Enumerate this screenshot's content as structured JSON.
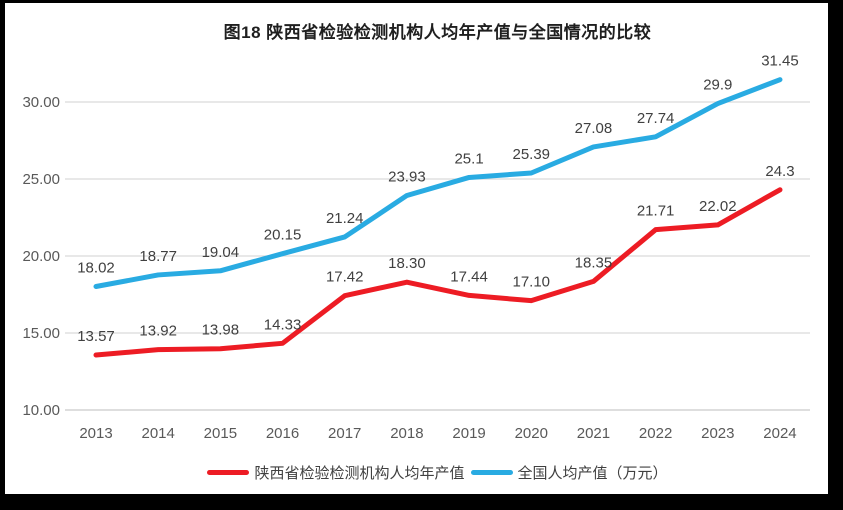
{
  "page": {
    "frame_color": "#000000",
    "background_color": "#ffffff"
  },
  "chart_data": {
    "type": "line",
    "title": "图18 陕西省检验检测机构人均年产值与全国情况的比较",
    "categories": [
      "2013",
      "2014",
      "2015",
      "2016",
      "2017",
      "2018",
      "2019",
      "2020",
      "2021",
      "2022",
      "2023",
      "2024"
    ],
    "series": [
      {
        "name": "陕西省检验检测机构人均年产值",
        "color": "#ED1C24",
        "values": [
          13.57,
          13.92,
          13.98,
          14.33,
          17.42,
          18.3,
          17.44,
          17.1,
          18.35,
          21.71,
          22.02,
          24.3
        ],
        "labels": [
          "13.57",
          "13.92",
          "13.98",
          "14.33",
          "17.42",
          "18.30",
          "17.44",
          "17.10",
          "18.35",
          "21.71",
          "22.02",
          "24.3"
        ]
      },
      {
        "name": "全国人均产值（万元）",
        "color": "#29ABE2",
        "values": [
          18.02,
          18.77,
          19.04,
          20.15,
          21.24,
          23.93,
          25.1,
          25.39,
          27.08,
          27.74,
          29.9,
          31.45
        ],
        "labels": [
          "18.02",
          "18.77",
          "19.04",
          "20.15",
          "21.24",
          "23.93",
          "25.1",
          "25.39",
          "27.08",
          "27.74",
          "29.9",
          "31.45"
        ]
      }
    ],
    "y_axis": {
      "min": 10,
      "max": 30,
      "ticks": [
        10,
        15,
        20,
        25,
        30
      ],
      "tick_labels": [
        "10.00",
        "15.00",
        "20.00",
        "25.00",
        "30.00"
      ]
    },
    "grid": true,
    "grid_color": "#D9D9D9",
    "axis_line_color": "#C9C9C9",
    "axis_text_color": "#595959",
    "data_label_color": "#404040",
    "legend_position": "bottom"
  }
}
